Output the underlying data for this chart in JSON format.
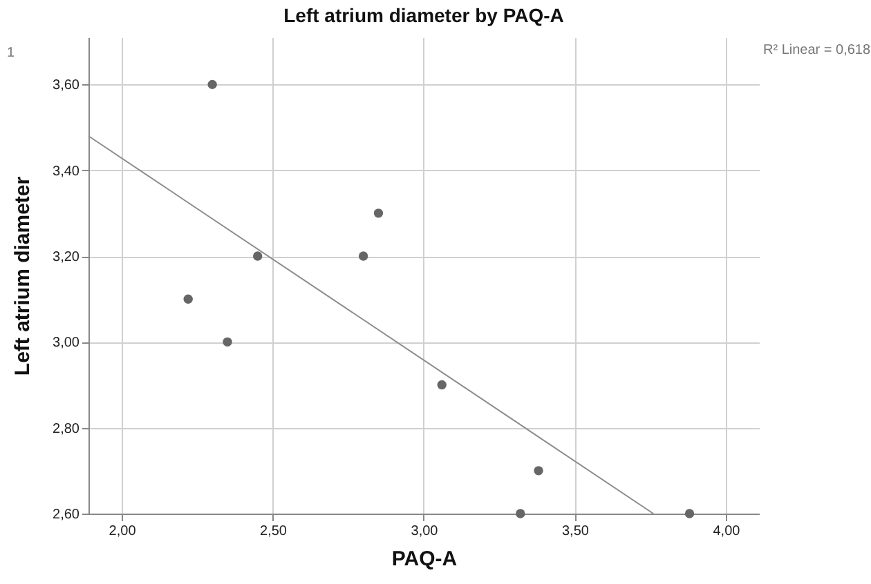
{
  "chart_data": {
    "type": "scatter",
    "title": "Left atrium diameter by PAQ-A",
    "xlabel": "PAQ-A",
    "ylabel": "Left atrium diameter",
    "annotations": [
      "1",
      "R² Linear = 0,618"
    ],
    "series": [
      {
        "color": "#666666",
        "marker": "circle",
        "x": [
          2.3,
          2.22,
          2.35,
          2.45,
          2.8,
          2.85,
          3.06,
          3.38,
          3.32,
          3.88
        ],
        "values": [
          3.6,
          3.1,
          3.0,
          3.2,
          3.2,
          3.3,
          2.9,
          2.7,
          2.6,
          2.6
        ]
      },
      {
        "type": "line",
        "color": "#8c8c8c",
        "x": [
          1.89,
          3.76
        ],
        "values": [
          3.48,
          2.6
        ]
      }
    ],
    "xlim": [
      1.89,
      4.11
    ],
    "ylim": [
      2.6,
      3.71
    ],
    "xticks": [
      {
        "value": 2,
        "label": "2,00"
      },
      {
        "value": 2.5,
        "label": "2,50"
      },
      {
        "value": 3,
        "label": "3,00"
      },
      {
        "value": 3.5,
        "label": "3,50"
      },
      {
        "value": 4,
        "label": "4,00"
      }
    ],
    "yticks": [
      {
        "value": 2.6,
        "label": "2,60"
      },
      {
        "value": 2.8,
        "label": "2,80"
      },
      {
        "value": 3,
        "label": "3,00"
      },
      {
        "value": 3.2,
        "label": "3,20"
      },
      {
        "value": 3.4,
        "label": "3,40"
      },
      {
        "value": 3.6,
        "label": "3,60"
      }
    ],
    "grid": true
  }
}
